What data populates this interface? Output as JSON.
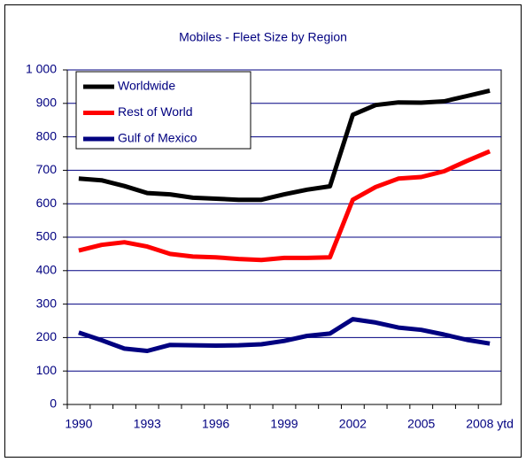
{
  "chart_data": {
    "type": "line",
    "title": "Mobiles - Fleet Size by Region",
    "categories": [
      "1990",
      null,
      null,
      "1993",
      null,
      null,
      "1996",
      null,
      null,
      "1999",
      null,
      null,
      "2002",
      null,
      null,
      "2005",
      null,
      null,
      "2008 ytd"
    ],
    "series": [
      {
        "name": "Worldwide",
        "color": "#000000",
        "values": [
          675,
          670,
          653,
          632,
          628,
          618,
          615,
          612,
          612,
          628,
          642,
          652,
          866,
          895,
          903,
          902,
          906,
          922,
          938
        ]
      },
      {
        "name": "Rest of World",
        "color": "#ff0000",
        "values": [
          460,
          477,
          485,
          472,
          450,
          442,
          440,
          435,
          432,
          438,
          438,
          440,
          612,
          650,
          675,
          680,
          697,
          728,
          757
        ]
      },
      {
        "name": "Gulf of Mexico",
        "color": "#000080",
        "values": [
          215,
          192,
          167,
          160,
          178,
          177,
          176,
          177,
          180,
          190,
          205,
          212,
          255,
          245,
          230,
          223,
          209,
          193,
          182
        ]
      }
    ],
    "ylim": [
      0,
      1000
    ],
    "yticks": [
      0,
      100,
      200,
      300,
      400,
      500,
      600,
      700,
      800,
      900,
      {
        "value": 1000,
        "label": "1 000"
      }
    ],
    "grid": true,
    "legend": "upper left"
  }
}
